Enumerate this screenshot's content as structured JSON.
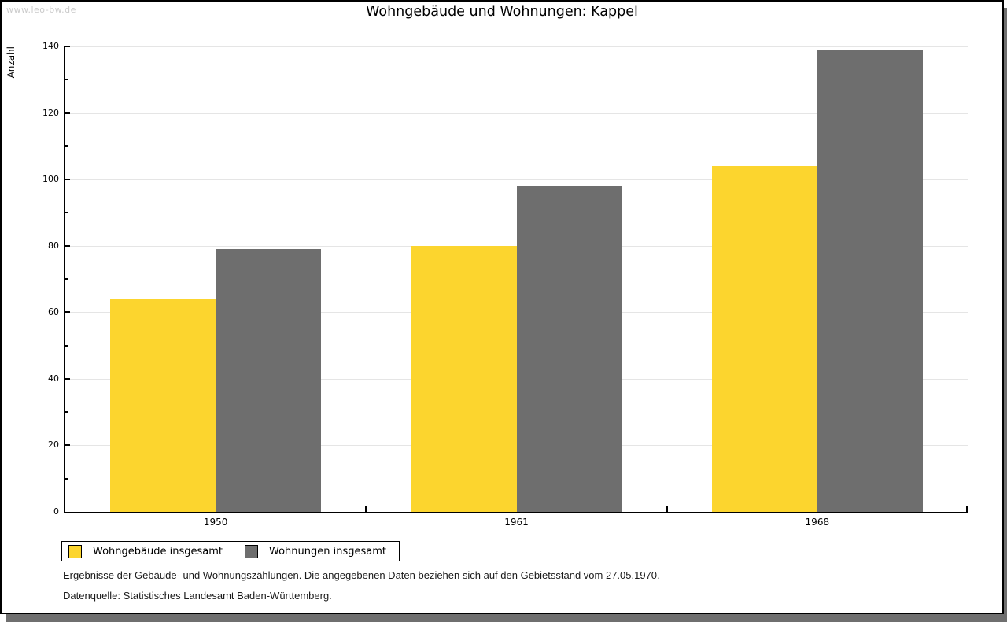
{
  "watermark": "www.leo-bw.de",
  "chart_data": {
    "type": "bar",
    "title": "Wohngebäude und Wohnungen: Kappel",
    "ylabel": "Anzahl",
    "xlabel": "",
    "categories": [
      "1950",
      "1961",
      "1968"
    ],
    "series": [
      {
        "name": "Wohngebäude insgesamt",
        "color": "#FCD52E",
        "values": [
          64,
          80,
          104
        ]
      },
      {
        "name": "Wohnungen insgesamt",
        "color": "#6E6E6E",
        "values": [
          79,
          98,
          139
        ]
      }
    ],
    "ylim": [
      0,
      140
    ],
    "y_major_step": 20,
    "y_minor_step": 10,
    "y_tick_labels": [
      "0",
      "20",
      "40",
      "60",
      "80",
      "100",
      "120",
      "140"
    ],
    "grid": true,
    "gridline_color": "#E5E5E5",
    "axis_color": "#000000",
    "legend_position": "bottom-left",
    "watermark_color": "#CBCBCB"
  },
  "footnotes": [
    "Ergebnisse der Gebäude- und Wohnungszählungen. Die angegebenen Daten beziehen sich auf den Gebietsstand vom 27.05.1970.",
    "Datenquelle: Statistisches Landesamt Baden-Württemberg."
  ]
}
